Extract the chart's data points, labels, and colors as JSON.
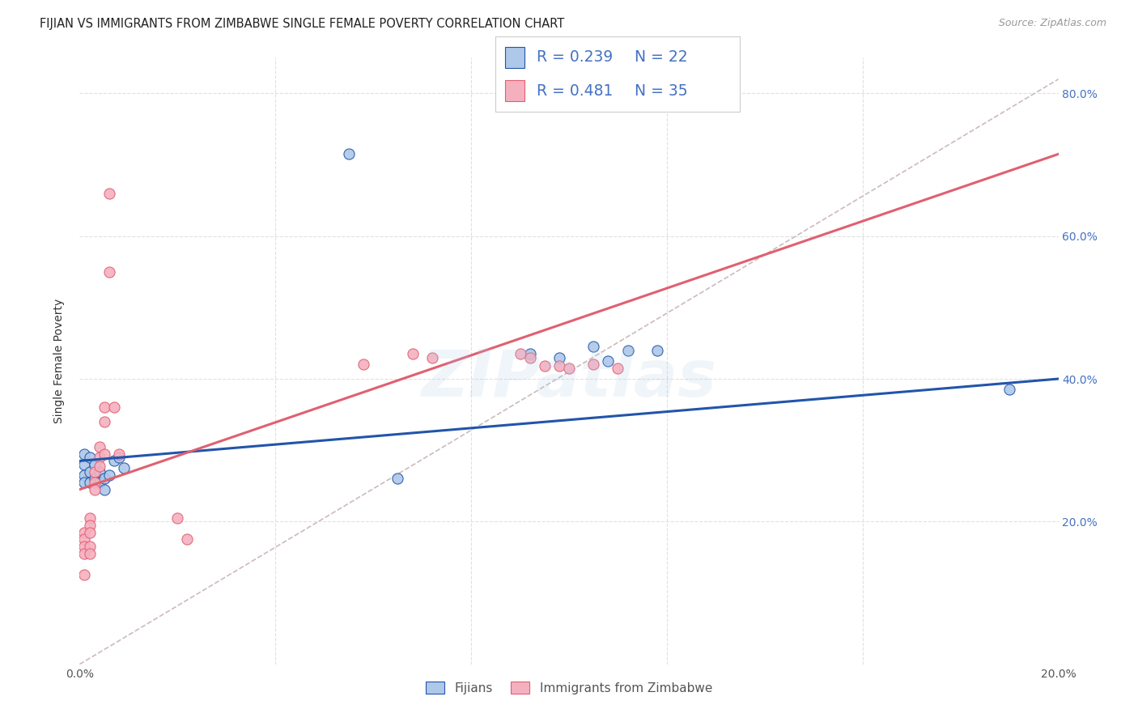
{
  "title": "FIJIAN VS IMMIGRANTS FROM ZIMBABWE SINGLE FEMALE POVERTY CORRELATION CHART",
  "source": "Source: ZipAtlas.com",
  "ylabel": "Single Female Poverty",
  "xlim": [
    0.0,
    0.2
  ],
  "ylim": [
    0.0,
    0.85
  ],
  "fijian_color": "#adc8e8",
  "zimbabwe_color": "#f5b0c0",
  "fijian_line_color": "#2255aa",
  "zimbabwe_line_color": "#e06070",
  "diag_line_color": "#ccbbbb",
  "fijian_label": "Fijians",
  "zimbabwe_label": "Immigrants from Zimbabwe",
  "fijians_x": [
    0.001,
    0.001,
    0.001,
    0.001,
    0.002,
    0.002,
    0.002,
    0.003,
    0.003,
    0.004,
    0.004,
    0.005,
    0.005,
    0.006,
    0.007,
    0.008,
    0.009,
    0.055,
    0.065,
    0.092,
    0.098,
    0.105,
    0.108,
    0.112,
    0.118,
    0.19
  ],
  "fijians_y": [
    0.295,
    0.28,
    0.265,
    0.255,
    0.29,
    0.27,
    0.255,
    0.28,
    0.26,
    0.27,
    0.255,
    0.26,
    0.245,
    0.265,
    0.285,
    0.29,
    0.275,
    0.715,
    0.26,
    0.435,
    0.43,
    0.445,
    0.425,
    0.44,
    0.44,
    0.385
  ],
  "zimbabwe_x": [
    0.001,
    0.001,
    0.001,
    0.001,
    0.001,
    0.002,
    0.002,
    0.002,
    0.002,
    0.002,
    0.003,
    0.003,
    0.003,
    0.004,
    0.004,
    0.004,
    0.005,
    0.005,
    0.005,
    0.006,
    0.006,
    0.007,
    0.008,
    0.02,
    0.022,
    0.058,
    0.068,
    0.072,
    0.09,
    0.092,
    0.095,
    0.098,
    0.1,
    0.105,
    0.11
  ],
  "zimbabwe_y": [
    0.185,
    0.175,
    0.165,
    0.155,
    0.125,
    0.205,
    0.195,
    0.185,
    0.165,
    0.155,
    0.27,
    0.255,
    0.245,
    0.305,
    0.29,
    0.278,
    0.36,
    0.34,
    0.295,
    0.66,
    0.55,
    0.36,
    0.295,
    0.205,
    0.175,
    0.42,
    0.435,
    0.43,
    0.435,
    0.43,
    0.418,
    0.418,
    0.415,
    0.42,
    0.415
  ],
  "title_fontsize": 10.5,
  "source_fontsize": 9,
  "axis_label_fontsize": 10,
  "tick_fontsize": 10,
  "legend_value_color": "#4472c4",
  "legend_fontsize": 13.5,
  "watermark_text": "ZIPatlas",
  "watermark_color": "#adc8e8",
  "watermark_alpha": 0.18
}
